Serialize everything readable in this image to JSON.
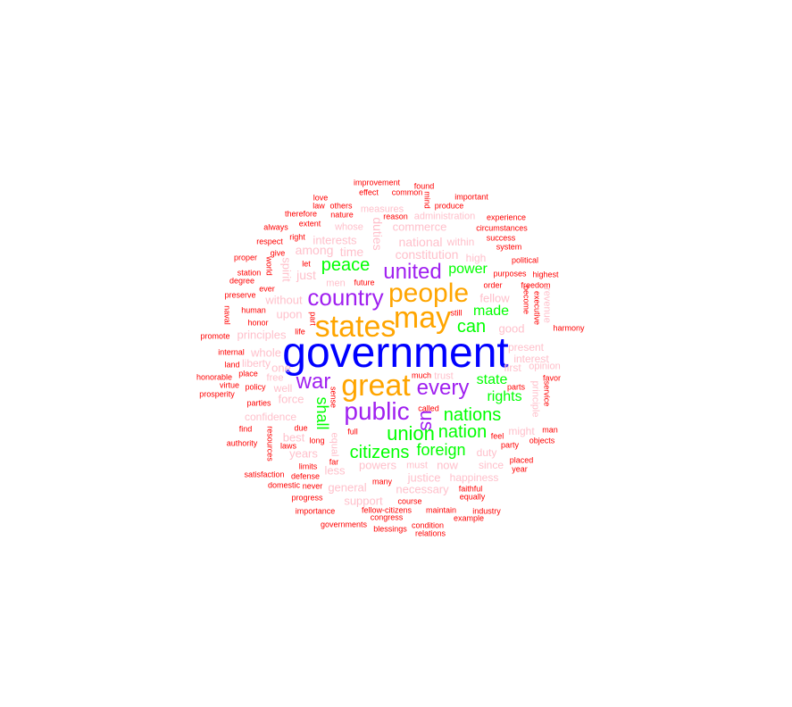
{
  "chart_data": {
    "type": "wordcloud",
    "title": "",
    "tiers": [
      {
        "level": 1,
        "color": "#0000ff",
        "words": [
          "government"
        ]
      },
      {
        "level": 2,
        "color": "#ffa500",
        "words": [
          "states",
          "may",
          "people",
          "great"
        ]
      },
      {
        "level": 3,
        "color": "#a020f0",
        "words": [
          "country",
          "united",
          "public",
          "war",
          "every",
          "us"
        ]
      },
      {
        "level": 4,
        "color": "#00ff00",
        "words": [
          "peace",
          "can",
          "union",
          "citizens",
          "nations",
          "nation",
          "foreign",
          "shall",
          "power",
          "made",
          "state",
          "rights"
        ]
      },
      {
        "level": 5,
        "color": "#ffc0cb",
        "words": [
          "constitution",
          "national",
          "time",
          "among",
          "interests",
          "duties",
          "spirit",
          "just",
          "without",
          "upon",
          "principles",
          "whole",
          "one",
          "liberty",
          "force",
          "confidence",
          "best",
          "years",
          "less",
          "powers",
          "general",
          "support",
          "necessary",
          "justice",
          "happiness",
          "now",
          "duty",
          "since",
          "might",
          "first",
          "present",
          "interest",
          "good",
          "fellow",
          "high",
          "within",
          "commerce",
          "administration",
          "measures",
          "whose",
          "men",
          "free",
          "well",
          "trust",
          "equal",
          "principle",
          "revenue",
          "opinion",
          "must"
        ]
      },
      {
        "level": 6,
        "color": "#ff0000",
        "words": [
          "improvement",
          "found",
          "effect",
          "common",
          "mind",
          "important",
          "love",
          "others",
          "law",
          "therefore",
          "nature",
          "reason",
          "produce",
          "experience",
          "always",
          "extent",
          "right",
          "circumstances",
          "respect",
          "success",
          "system",
          "proper",
          "give",
          "world",
          "political",
          "station",
          "let",
          "purposes",
          "highest",
          "degree",
          "ever",
          "order",
          "freedom",
          "preserve",
          "future",
          "become",
          "naval",
          "human",
          "part",
          "still",
          "executive",
          "honor",
          "life",
          "harmony",
          "promote",
          "internal",
          "land",
          "honorable",
          "virtue",
          "policy",
          "place",
          "much",
          "favor",
          "prosperity",
          "parties",
          "called",
          "service",
          "parts",
          "find",
          "authority",
          "due",
          "full",
          "feel",
          "man",
          "long",
          "party",
          "objects",
          "resources",
          "laws",
          "limits",
          "far",
          "placed",
          "year",
          "satisfaction",
          "defense",
          "many",
          "faithful",
          "domestic",
          "never",
          "progress",
          "course",
          "equally",
          "importance",
          "fellow-citizens",
          "maintain",
          "industry",
          "congress",
          "example",
          "governments",
          "blessings",
          "condition",
          "relations",
          "sense"
        ]
      }
    ]
  }
}
